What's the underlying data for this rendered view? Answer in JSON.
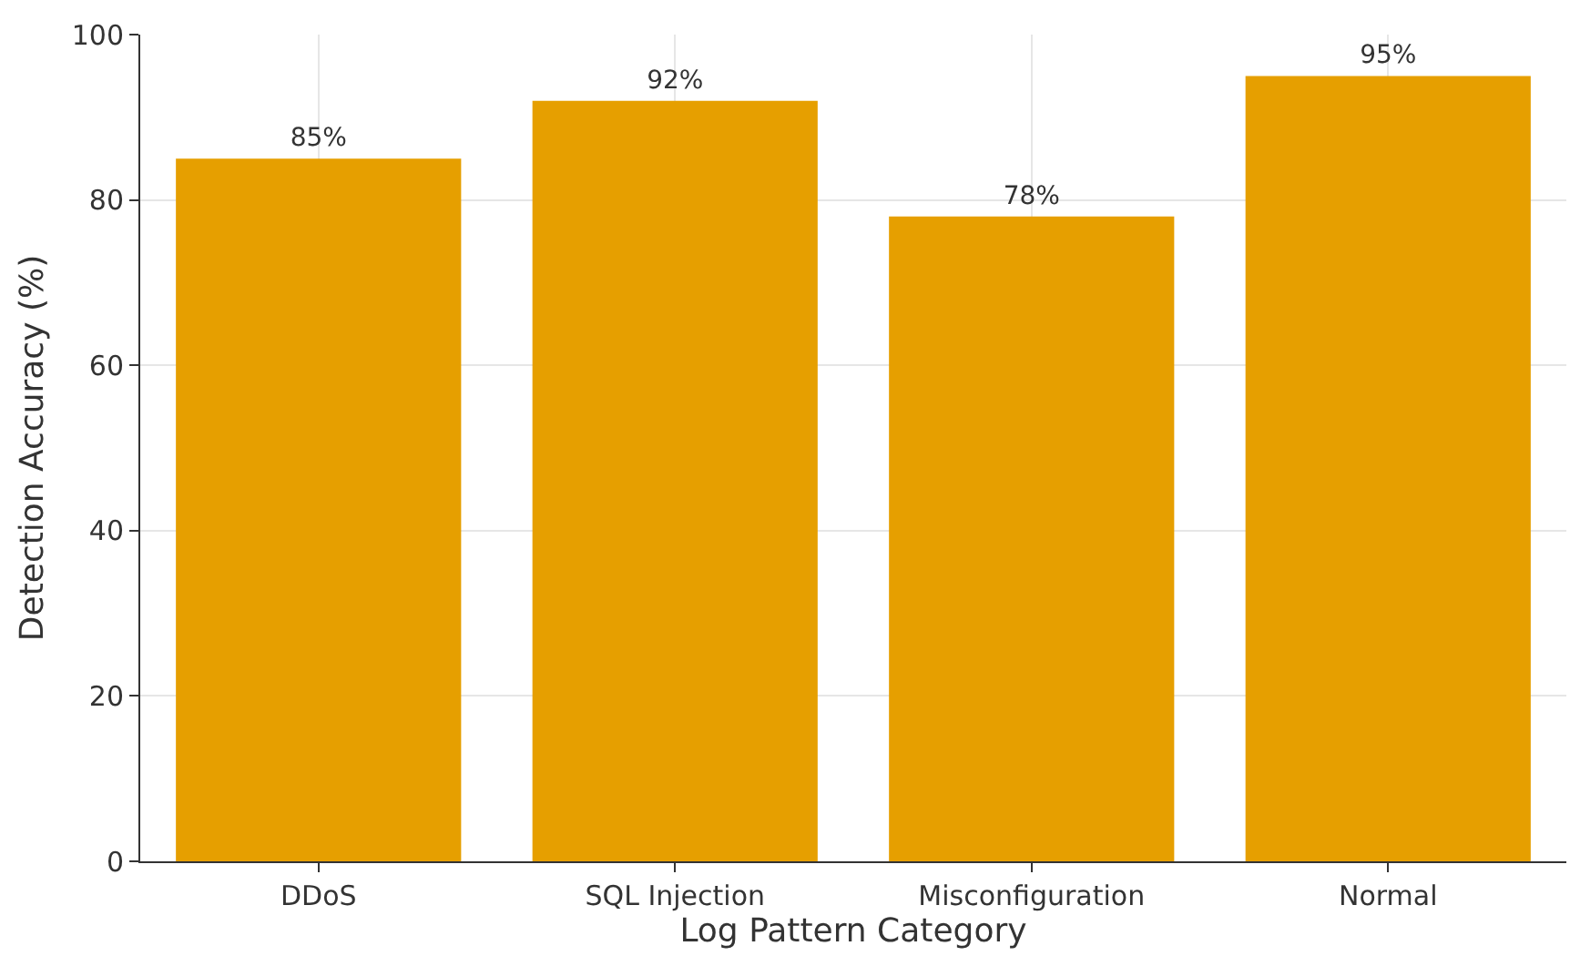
{
  "chart_data": {
    "type": "bar",
    "xlabel": "Log Pattern Category",
    "ylabel": "Detection Accuracy (%)",
    "categories": [
      "DDoS",
      "SQL Injection",
      "Misconfiguration",
      "Normal"
    ],
    "values": [
      85,
      92,
      78,
      95
    ],
    "color": "#e69f00",
    "value_labels": [
      "85%",
      "92%",
      "78%",
      "95%"
    ],
    "ylim": [
      0,
      100
    ],
    "yticks": [
      0,
      20,
      40,
      60,
      80,
      100
    ],
    "grid": true
  }
}
